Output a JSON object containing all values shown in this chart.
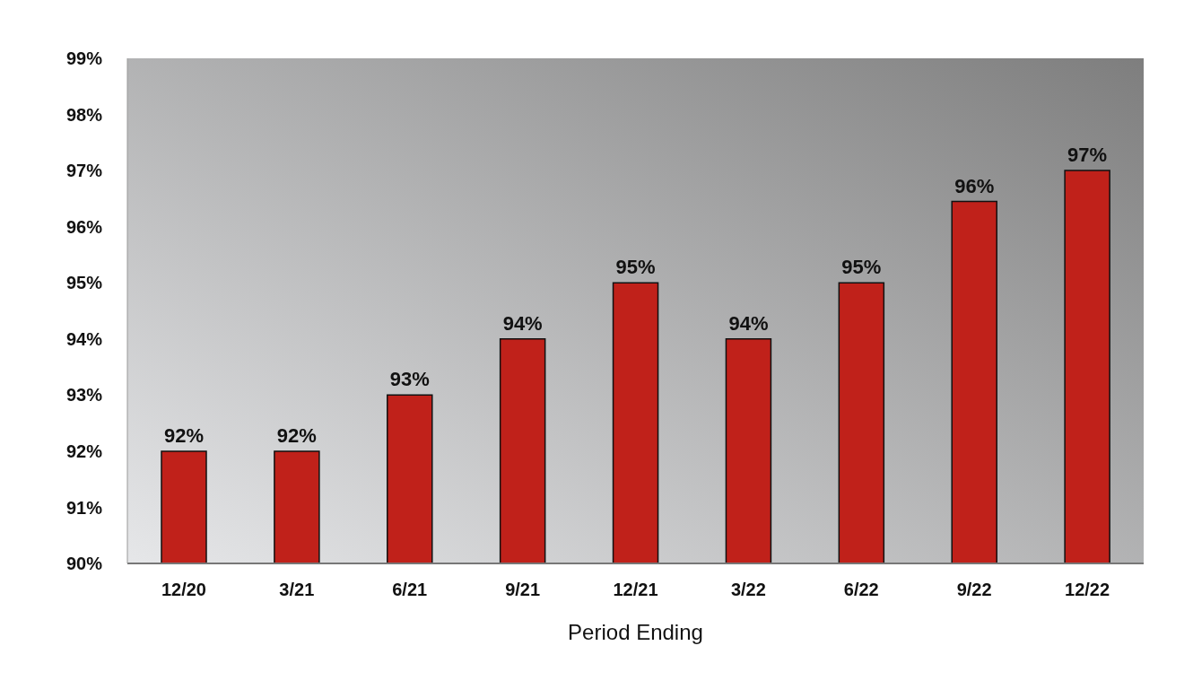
{
  "chart_data": {
    "type": "bar",
    "xlabel": "Period Ending",
    "categories": [
      "12/20",
      "3/21",
      "6/21",
      "9/21",
      "12/21",
      "3/22",
      "6/22",
      "9/22",
      "12/22"
    ],
    "values": [
      92,
      92,
      93,
      94,
      95,
      94,
      95,
      96.45,
      97
    ],
    "value_labels": [
      "92%",
      "92%",
      "93%",
      "94%",
      "95%",
      "94%",
      "95%",
      "96%",
      "97%"
    ],
    "color": "#c0211a",
    "ylim": [
      90,
      99
    ],
    "yticks": [
      {
        "value": 90,
        "label": "90%"
      },
      {
        "value": 91,
        "label": "91%"
      },
      {
        "value": 92,
        "label": "92%"
      },
      {
        "value": 93,
        "label": "93%"
      },
      {
        "value": 94,
        "label": "94%"
      },
      {
        "value": 95,
        "label": "95%"
      },
      {
        "value": 96,
        "label": "96%"
      },
      {
        "value": 97,
        "label": "97%"
      },
      {
        "value": 98,
        "label": "98%"
      },
      {
        "value": 99,
        "label": "99%"
      }
    ],
    "grid": false,
    "legend": false
  }
}
